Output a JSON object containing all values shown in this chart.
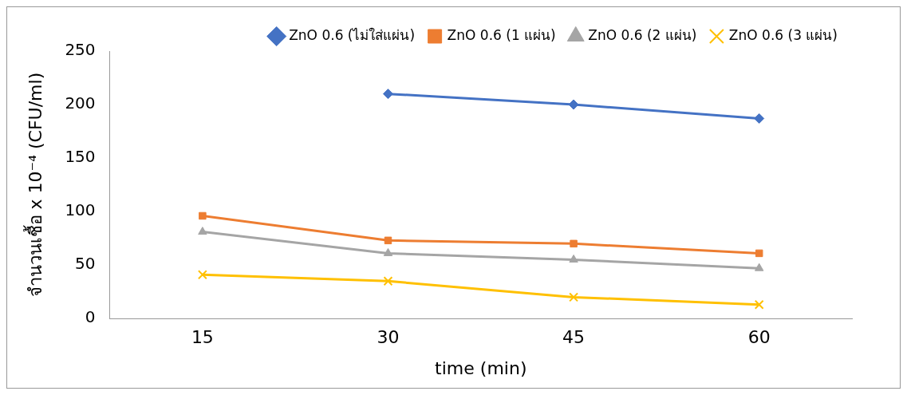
{
  "chart_data": {
    "type": "line",
    "xlabel": "time (min)",
    "ylabel": "จำนวนเชื้อ x 10⁻⁴ (CFU/ml)",
    "categories": [
      "15",
      "30",
      "45",
      "60"
    ],
    "ylim": [
      0,
      250
    ],
    "yticks": [
      0,
      50,
      100,
      150,
      200,
      250
    ],
    "grid": false,
    "legend": "top right",
    "series": [
      {
        "name": "ZnO 0.6 (ไม่ใส่แผ่น)",
        "color": "#4472c4",
        "marker": "diamond",
        "values": [
          null,
          210,
          200,
          187
        ]
      },
      {
        "name": "ZnO 0.6 (1 แผ่น)",
        "color": "#ed7d31",
        "marker": "square",
        "values": [
          96,
          73,
          70,
          61
        ]
      },
      {
        "name": "ZnO 0.6 (2 แผ่น)",
        "color": "#a5a5a5",
        "marker": "triangle",
        "values": [
          81,
          61,
          55,
          47
        ]
      },
      {
        "name": "ZnO 0.6 (3 แผ่น)",
        "color": "#ffc000",
        "marker": "cross",
        "values": [
          41,
          35,
          20,
          13
        ]
      }
    ]
  }
}
